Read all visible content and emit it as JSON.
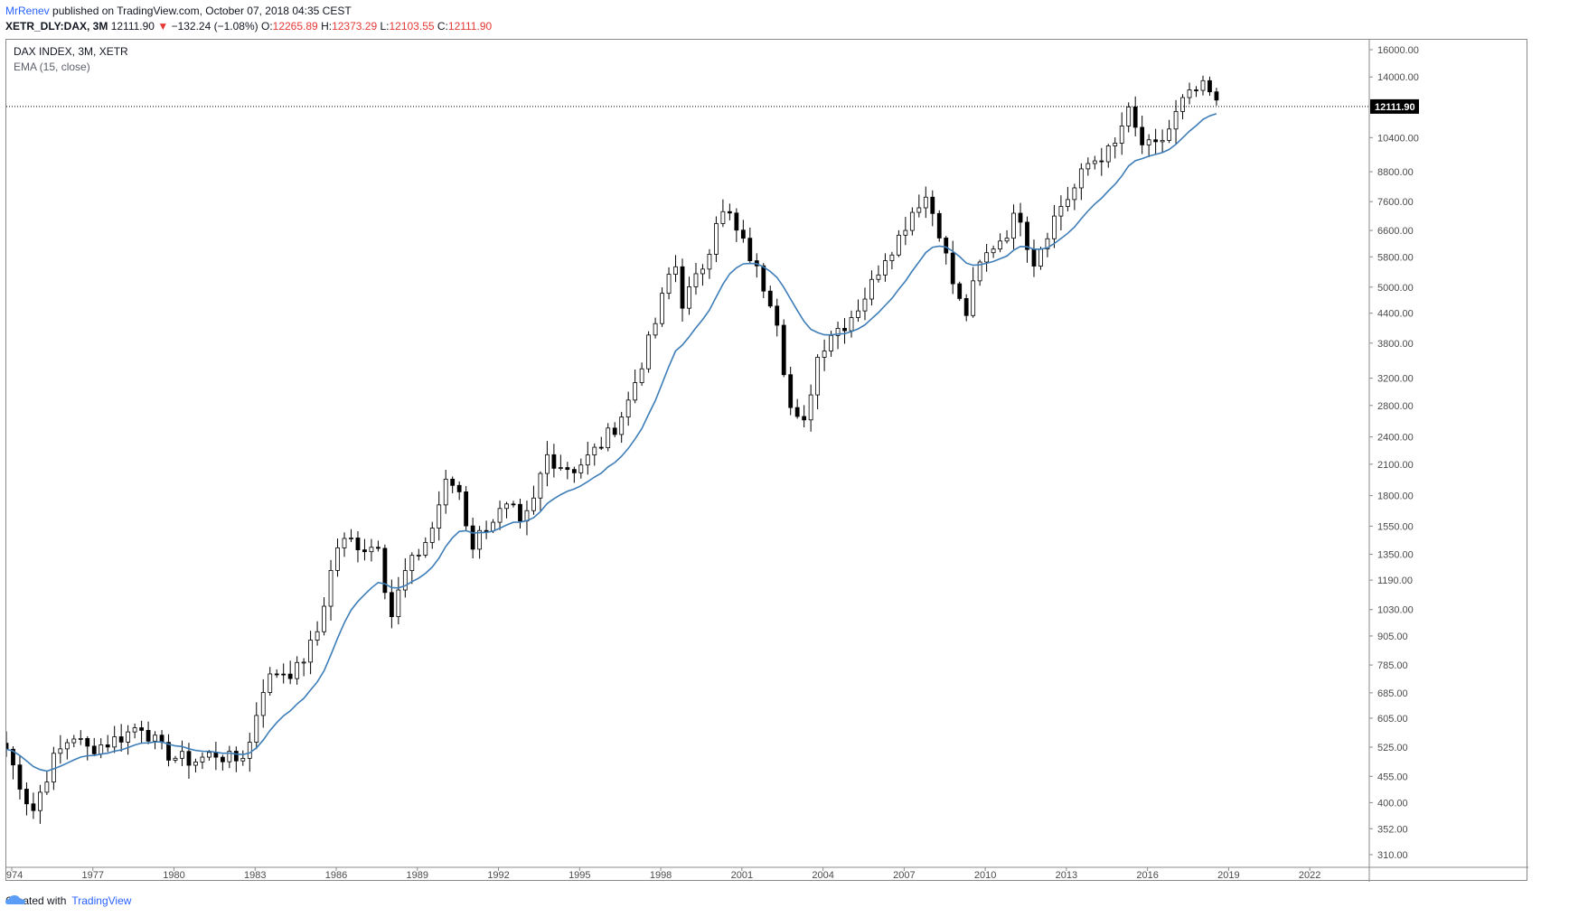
{
  "header": {
    "author": "MrRenev",
    "published": "published on TradingView.com, October 07, 2018 04:35 CEST"
  },
  "symbol_line": {
    "symbol": "XETR_DLY:DAX, 3M",
    "last": "12111.90",
    "change": "−132.24 (−1.08%)",
    "o_label": "O:",
    "o": "12265.89",
    "h_label": "H:",
    "h": "12373.29",
    "l_label": "L:",
    "l": "12103.55",
    "c_label": "C:",
    "c": "12111.90"
  },
  "legend": {
    "title": "DAX INDEX, 3M, XETR",
    "indicator": "EMA (15, close)"
  },
  "footer": {
    "created": "Created with",
    "brand": "TradingView"
  },
  "colors": {
    "ema": "#3d7db8",
    "candle_up_fill": "#ffffff",
    "candle_down_fill": "#000000",
    "accent": "#2962ff",
    "down": "#e53935"
  },
  "chart_data": {
    "type": "candlestick",
    "title": "DAX INDEX, 3M, XETR",
    "y_scale": "log",
    "y_ticks": [
      310,
      352,
      400,
      455,
      525,
      605,
      685,
      785,
      905,
      1030,
      1190,
      1350,
      1550,
      1800,
      2100,
      2400,
      2800,
      3200,
      3800,
      4400,
      5000,
      5800,
      6600,
      7600,
      8800,
      10400,
      14000,
      16000
    ],
    "y_tick_labels": [
      "310.00",
      "352.00",
      "400.00",
      "455.00",
      "525.00",
      "605.00",
      "685.00",
      "785.00",
      "905.00",
      "1030.00",
      "1190.00",
      "1350.00",
      "1550.00",
      "1800.00",
      "2100.00",
      "2400.00",
      "2800.00",
      "3200.00",
      "3800.00",
      "4400.00",
      "5000.00",
      "5800.00",
      "6600.00",
      "7600.00",
      "8800.00",
      "10400.00",
      "14000.00",
      "16000.00"
    ],
    "x_ticks": [
      "1974",
      "1977",
      "1980",
      "1983",
      "1986",
      "1989",
      "1992",
      "1995",
      "1998",
      "2001",
      "2004",
      "2007",
      "2010",
      "2013",
      "2016",
      "2019",
      "2022"
    ],
    "x_range": [
      1973.8,
      2024.2
    ],
    "last_price": 12111.9,
    "last_price_label": "12111.90",
    "ema_label": "EMA (15, close)",
    "anchors": [
      [
        1973.8,
        520
      ],
      [
        1974.75,
        380
      ],
      [
        1975.5,
        490
      ],
      [
        1976.25,
        560
      ],
      [
        1976.75,
        520
      ],
      [
        1977.5,
        535
      ],
      [
        1978.25,
        560
      ],
      [
        1978.75,
        590
      ],
      [
        1979.5,
        520
      ],
      [
        1980.0,
        500
      ],
      [
        1980.75,
        490
      ],
      [
        1981.5,
        510
      ],
      [
        1982.25,
        490
      ],
      [
        1982.75,
        520
      ],
      [
        1983.25,
        700
      ],
      [
        1983.75,
        760
      ],
      [
        1984.5,
        760
      ],
      [
        1985.25,
        900
      ],
      [
        1985.75,
        1200
      ],
      [
        1986.0,
        1400
      ],
      [
        1986.5,
        1450
      ],
      [
        1987.25,
        1380
      ],
      [
        1987.5,
        1500
      ],
      [
        1988.0,
        980
      ],
      [
        1988.5,
        1220
      ],
      [
        1989.0,
        1350
      ],
      [
        1989.5,
        1500
      ],
      [
        1990.0,
        1900
      ],
      [
        1990.5,
        1900
      ],
      [
        1991.0,
        1400
      ],
      [
        1991.5,
        1550
      ],
      [
        1992.0,
        1650
      ],
      [
        1992.5,
        1700
      ],
      [
        1992.75,
        1520
      ],
      [
        1993.25,
        1700
      ],
      [
        1993.75,
        2200
      ],
      [
        1994.25,
        2100
      ],
      [
        1994.75,
        2050
      ],
      [
        1995.25,
        2150
      ],
      [
        1995.75,
        2300
      ],
      [
        1996.25,
        2500
      ],
      [
        1996.75,
        2800
      ],
      [
        1997.25,
        3400
      ],
      [
        1997.75,
        4100
      ],
      [
        1998.5,
        5800
      ],
      [
        1998.75,
        4600
      ],
      [
        1999.25,
        5100
      ],
      [
        1999.75,
        5900
      ],
      [
        2000.0,
        7000
      ],
      [
        2000.5,
        7200
      ],
      [
        2000.75,
        6600
      ],
      [
        2001.25,
        5900
      ],
      [
        2001.75,
        5100
      ],
      [
        2002.25,
        4500
      ],
      [
        2002.75,
        2800
      ],
      [
        2003.25,
        2450
      ],
      [
        2003.75,
        3500
      ],
      [
        2004.25,
        4000
      ],
      [
        2004.75,
        4150
      ],
      [
        2005.25,
        4500
      ],
      [
        2005.75,
        5000
      ],
      [
        2006.25,
        5800
      ],
      [
        2006.75,
        6300
      ],
      [
        2007.25,
        7200
      ],
      [
        2007.75,
        7900
      ],
      [
        2008.25,
        6800
      ],
      [
        2008.75,
        5200
      ],
      [
        2009.25,
        4300
      ],
      [
        2009.75,
        5500
      ],
      [
        2010.25,
        6100
      ],
      [
        2010.75,
        6500
      ],
      [
        2011.25,
        7300
      ],
      [
        2011.75,
        5600
      ],
      [
        2012.25,
        6500
      ],
      [
        2012.75,
        7400
      ],
      [
        2013.25,
        8000
      ],
      [
        2013.75,
        9100
      ],
      [
        2014.25,
        9500
      ],
      [
        2014.75,
        9800
      ],
      [
        2015.25,
        11900
      ],
      [
        2015.75,
        10100
      ],
      [
        2016.25,
        9800
      ],
      [
        2016.75,
        10700
      ],
      [
        2017.25,
        12300
      ],
      [
        2017.75,
        13000
      ],
      [
        2018.0,
        13300
      ],
      [
        2018.5,
        12600
      ],
      [
        2018.75,
        12111.9
      ]
    ]
  }
}
